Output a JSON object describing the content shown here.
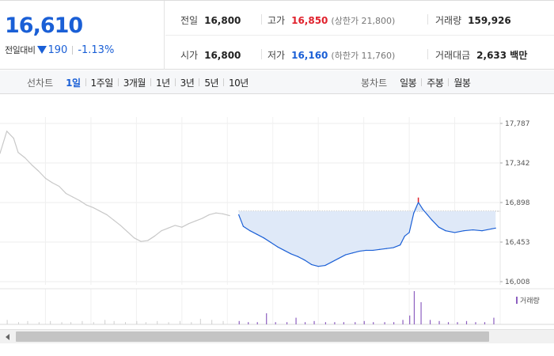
{
  "quote": {
    "current_price": "16,610",
    "change_label": "전일대비",
    "change_amount": "190",
    "change_rate": "-1.13%",
    "prev_close_label": "전일",
    "prev_close": "16,800",
    "high_label": "고가",
    "high": "16,850",
    "upper_limit": "(상한가 21,800)",
    "volume_label": "거래량",
    "volume": "159,926",
    "open_label": "시가",
    "open": "16,800",
    "low_label": "저가",
    "low": "16,160",
    "lower_limit": "(하한가 11,760)",
    "trade_value_label": "거래대금",
    "trade_value": "2,633 백만"
  },
  "toolbar": {
    "line_chart_label": "선차트",
    "periods": [
      "1일",
      "1주일",
      "3개월",
      "1년",
      "3년",
      "5년",
      "10년"
    ],
    "active_period": "1일",
    "candle_chart_label": "봉차트",
    "candle_periods": [
      "일봉",
      "주봉",
      "월봉"
    ]
  },
  "colors": {
    "accent": "#1a5fd6",
    "rise": "#e0212c",
    "fall": "#1a5fd6",
    "fill": "#dfe9f8",
    "grey_line": "#c8c8c8"
  },
  "icons": {
    "change_direction": "triangle-down-icon",
    "scroll_left": "arrow-left-icon"
  },
  "chart_data": {
    "type": "line",
    "y_ticks": [
      "17,787",
      "17,342",
      "16,898",
      "16,453",
      "16,008"
    ],
    "ylim": [
      16008,
      17787
    ],
    "prev_close_line": 16800,
    "grid": true,
    "vertical_grid_count": 11,
    "series": [
      {
        "name": "prior_session_grey",
        "x": [
          0,
          3,
          6,
          8,
          11,
          14,
          17,
          20,
          23,
          26,
          29,
          32,
          35,
          38,
          41,
          44,
          47,
          50,
          53,
          56,
          59,
          62,
          65,
          68,
          71,
          74,
          77,
          80,
          83,
          86,
          89,
          92,
          95,
          98,
          101
        ],
        "values": [
          17450,
          17700,
          17620,
          17460,
          17400,
          17320,
          17250,
          17170,
          17120,
          17080,
          17000,
          16960,
          16920,
          16870,
          16840,
          16800,
          16760,
          16700,
          16640,
          16570,
          16500,
          16460,
          16470,
          16520,
          16580,
          16610,
          16640,
          16620,
          16660,
          16690,
          16720,
          16760,
          16780,
          16770,
          16750
        ]
      },
      {
        "name": "today_blue",
        "x": [
          105,
          107,
          110,
          113,
          116,
          119,
          122,
          125,
          128,
          131,
          134,
          137,
          140,
          143,
          146,
          149,
          152,
          155,
          158,
          161,
          164,
          167,
          170,
          173,
          176,
          178,
          180,
          182,
          184,
          186,
          188,
          190,
          193,
          196,
          200,
          204,
          208,
          212,
          216,
          218
        ],
        "values": [
          16760,
          16630,
          16580,
          16540,
          16500,
          16450,
          16400,
          16360,
          16320,
          16290,
          16250,
          16200,
          16180,
          16190,
          16230,
          16270,
          16310,
          16330,
          16350,
          16360,
          16360,
          16370,
          16380,
          16390,
          16420,
          16520,
          16560,
          16780,
          16900,
          16820,
          16760,
          16700,
          16620,
          16580,
          16560,
          16580,
          16590,
          16580,
          16600,
          16610
        ]
      }
    ],
    "volume_legend": "거래량",
    "volume": {
      "grey_x": [
        3,
        8,
        12,
        17,
        22,
        27,
        31,
        36,
        41,
        46,
        50,
        55,
        60,
        64,
        69,
        74,
        79,
        84,
        88,
        93,
        98
      ],
      "grey_values": [
        4,
        2,
        3,
        2,
        3,
        2,
        2,
        3,
        2,
        4,
        3,
        2,
        3,
        2,
        3,
        2,
        3,
        2,
        5,
        4,
        3
      ],
      "purple_x": [
        105,
        109,
        113,
        117,
        121,
        126,
        130,
        134,
        138,
        143,
        147,
        151,
        156,
        160,
        164,
        169,
        173,
        177,
        180,
        182,
        185,
        189,
        193,
        197,
        201,
        205,
        209,
        213,
        217
      ],
      "purple_values": [
        3,
        2,
        2,
        10,
        2,
        2,
        6,
        2,
        3,
        2,
        2,
        2,
        2,
        3,
        2,
        2,
        2,
        4,
        8,
        30,
        20,
        4,
        3,
        2,
        2,
        3,
        2,
        2,
        6
      ]
    }
  }
}
